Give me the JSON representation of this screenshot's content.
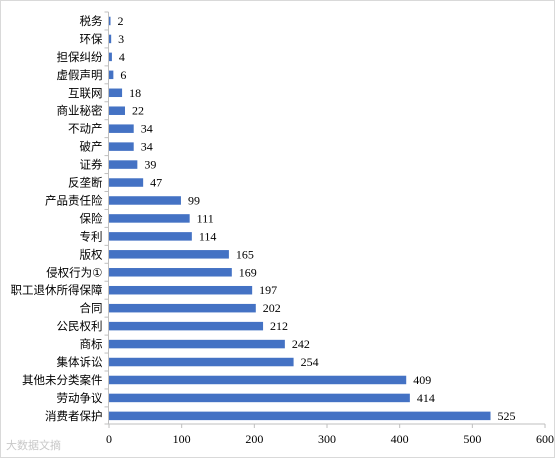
{
  "chart_data": {
    "type": "bar",
    "orientation": "horizontal",
    "categories": [
      "税务",
      "环保",
      "担保纠纷",
      "虚假声明",
      "互联网",
      "商业秘密",
      "不动产",
      "破产",
      "证券",
      "反垄断",
      "产品责任险",
      "保险",
      "专利",
      "版权",
      "侵权行为①",
      "职工退休所得保障",
      "合同",
      "公民权利",
      "商标",
      "集体诉讼",
      "其他未分类案件",
      "劳动争议",
      "消费者保护"
    ],
    "values": [
      2,
      3,
      4,
      6,
      18,
      22,
      34,
      34,
      39,
      47,
      99,
      111,
      114,
      165,
      169,
      197,
      202,
      212,
      242,
      254,
      409,
      414,
      525
    ],
    "xlim": [
      0,
      600
    ],
    "xticks": [
      "0",
      "100",
      "200",
      "300",
      "400",
      "500",
      "600"
    ],
    "data_labels": true,
    "grid": false,
    "bar_color": "#4472c4"
  },
  "watermark": "大数据文摘"
}
